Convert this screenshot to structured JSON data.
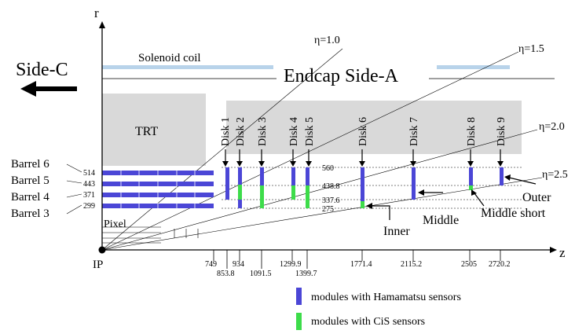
{
  "axes": {
    "r_label": "r",
    "z_label": "z",
    "origin_label": "IP"
  },
  "labels": {
    "side_c": "Side-C",
    "solenoid": "Solenoid coil",
    "endcap": "Endcap Side-A",
    "trt": "TRT",
    "pixel": "Pixel",
    "inner": "Inner",
    "middle": "Middle",
    "middle_short": "Middle short",
    "outer": "Outer"
  },
  "eta_lines": [
    {
      "label": "η=1.0"
    },
    {
      "label": "η=1.5"
    },
    {
      "label": "η=2.0"
    },
    {
      "label": "η=2.5"
    }
  ],
  "barrels": [
    {
      "name": "Barrel 6",
      "radius": "514"
    },
    {
      "name": "Barrel 5",
      "radius": "443"
    },
    {
      "name": "Barrel 4",
      "radius": "371"
    },
    {
      "name": "Barrel 3",
      "radius": "299"
    }
  ],
  "radius_marks": [
    "560",
    "438.8",
    "337.6",
    "275"
  ],
  "disks": [
    {
      "name": "Disk 1",
      "z": "853.8"
    },
    {
      "name": "Disk 2",
      "z": "934"
    },
    {
      "name": "Disk 3",
      "z": "1091.5"
    },
    {
      "name": "Disk 4",
      "z": "1299.9"
    },
    {
      "name": "Disk 5",
      "z": "1399.7"
    },
    {
      "name": "Disk 6",
      "z": "1771.4"
    },
    {
      "name": "Disk 7",
      "z": "2115.2"
    },
    {
      "name": "Disk 8",
      "z": "2505"
    },
    {
      "name": "Disk 9",
      "z": "2720.2"
    }
  ],
  "barrel_end_z": "749",
  "legend": [
    {
      "label": "modules with Hamamatsu sensors",
      "color": "#4b46d6"
    },
    {
      "label": "modules with CiS sensors",
      "color": "#3ddc4a"
    }
  ],
  "colors": {
    "hamamatsu": "#4b46d6",
    "cis": "#3ddc4a",
    "region": "#d9d9d9",
    "solenoid": "#b8d3ea"
  }
}
